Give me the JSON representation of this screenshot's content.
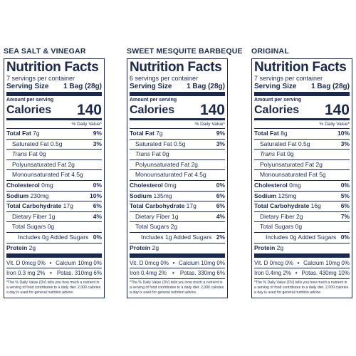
{
  "panels": [
    {
      "flavor": "SEA SALT & VINEGAR",
      "title": "Nutrition Facts",
      "servings": "7 servings per container",
      "serving_size_label": "Serving Size",
      "serving_size_value": "1 Bag (28g)",
      "amount_per_serving": "Amount per serving",
      "calories_label": "Calories",
      "calories_value": "140",
      "dv_header": "% Daily Value*",
      "total_fat": {
        "label": "Total Fat",
        "amt": "7g",
        "pct": "9%"
      },
      "sat_fat": {
        "label": "Saturated Fat",
        "amt": "0.5g",
        "pct": "3%"
      },
      "trans_fat": {
        "label_i": "Trans",
        "label": "Fat",
        "amt": "0g"
      },
      "poly_fat": {
        "label": "Polyunsaturated Fat",
        "amt": "2g"
      },
      "mono_fat": {
        "label": "Monounsaturated Fat",
        "amt": "4.5g"
      },
      "cholesterol": {
        "label": "Cholesterol",
        "amt": "0mg",
        "pct": "0%"
      },
      "sodium": {
        "label": "Sodium",
        "amt": "230mg",
        "pct": "10%"
      },
      "carb": {
        "label": "Total Carbohydrate",
        "amt": "17g",
        "pct": "6%"
      },
      "fiber": {
        "label": "Dietary Fiber",
        "amt": "1g",
        "pct": "4%"
      },
      "sugars": {
        "label": "Total Sugars",
        "amt": "0g"
      },
      "added_sugars": {
        "label": "Includes",
        "amt": "0g",
        "label2": "Added Sugars",
        "pct": "0%"
      },
      "protein": {
        "label": "Protein",
        "amt": "2g"
      },
      "vit_row1": {
        "a": "Vit. D 0mcg 0%",
        "b": "Calcium 10mg 0%"
      },
      "vit_row2": {
        "a": "Iron 0.3 mg  2%",
        "b": "Potas. 310mg 6%"
      },
      "footnote": "*The % Daily Value (DV) tells you how much a nutrient in a serving of food contributes to a daily diet. 2,000 calories a day is used for general nutrition advice."
    },
    {
      "flavor": "SWEET MESQUITE BARBEQUE",
      "title": "Nutrition Facts",
      "servings": "6 servings per container",
      "serving_size_label": "Serving Size",
      "serving_size_value": "1 Bag (28g)",
      "amount_per_serving": "Amount per serving",
      "calories_label": "Calories",
      "calories_value": "140",
      "dv_header": "% Daily Value*",
      "total_fat": {
        "label": "Total Fat",
        "amt": "7g",
        "pct": "9%"
      },
      "sat_fat": {
        "label": "Saturated Fat",
        "amt": "0.5g",
        "pct": "3%"
      },
      "trans_fat": {
        "label_i": "Trans",
        "label": "Fat",
        "amt": "0g"
      },
      "poly_fat": {
        "label": "Polyunsaturated Fat",
        "amt": "2g"
      },
      "mono_fat": {
        "label": "Monounsaturated Fat",
        "amt": "4.5g"
      },
      "cholesterol": {
        "label": "Cholesterol",
        "amt": "0mg",
        "pct": "0%"
      },
      "sodium": {
        "label": "Sodium",
        "amt": "135mg",
        "pct": "6%"
      },
      "carb": {
        "label": "Total Carbohydrate",
        "amt": "17g",
        "pct": "6%"
      },
      "fiber": {
        "label": "Dietary Fiber",
        "amt": "1g",
        "pct": "4%"
      },
      "sugars": {
        "label": "Total Sugars",
        "amt": "2g"
      },
      "added_sugars": {
        "label": "Includes",
        "amt": "1g",
        "label2": "Added Sugars",
        "pct": "2%"
      },
      "protein": {
        "label": "Protein",
        "amt": "2g"
      },
      "vit_row1": {
        "a": "Vit. D 0mcg 0%",
        "b": "Calcium 10mg 0%"
      },
      "vit_row2": {
        "a": "Iron 0.4mg 2%",
        "b": "Potas. 330mg 6%"
      },
      "footnote": "*The % Daily Value (DV) tells you how much a nutrient in a serving of food contributes to a daily diet. 2,000 calories a day is used for general nutrition advice."
    },
    {
      "flavor": "ORIGINAL",
      "title": "Nutrition Facts",
      "servings": "7 servings per container",
      "serving_size_label": "Serving Size",
      "serving_size_value": "1 Bag (28g)",
      "amount_per_serving": "Amount per serving",
      "calories_label": "Calories",
      "calories_value": "140",
      "dv_header": "% Daily Value*",
      "total_fat": {
        "label": "Total Fat",
        "amt": "8g",
        "pct": "10%"
      },
      "sat_fat": {
        "label": "Saturated Fat",
        "amt": "0.5g",
        "pct": "3%"
      },
      "trans_fat": {
        "label_i": "Trans",
        "label": "Fat",
        "amt": "0g"
      },
      "poly_fat": {
        "label": "Polyunsaturated Fat",
        "amt": "2g"
      },
      "mono_fat": {
        "label": "Monounsaturated Fat",
        "amt": "5g"
      },
      "cholesterol": {
        "label": "Cholesterol",
        "amt": "0mg",
        "pct": "0%"
      },
      "sodium": {
        "label": "Sodium",
        "amt": "125mg",
        "pct": "5%"
      },
      "carb": {
        "label": "Total Carbohydrate",
        "amt": "16g",
        "pct": "6%"
      },
      "fiber": {
        "label": "Dietary Fiber",
        "amt": "2g",
        "pct": "7%"
      },
      "sugars": {
        "label": "Total Sugars",
        "amt": "0g"
      },
      "added_sugars": {
        "label": "Includes",
        "amt": "0g",
        "label2": "Added Sugars",
        "pct": "0%"
      },
      "protein": {
        "label": "Protein",
        "amt": "2g"
      },
      "vit_row1": {
        "a": "Vit. D 0mcg 0%",
        "b": "Calcium 10mg 0%"
      },
      "vit_row2": {
        "a": "Iron 0.4mg 2%",
        "b": "Potas. 430mg 10%"
      },
      "footnote": "*The % Daily Value (DV) tells you how much a nutrient in a serving of food contributes to a daily diet. 2,000 calories a day is used for general nutrition advice."
    }
  ]
}
